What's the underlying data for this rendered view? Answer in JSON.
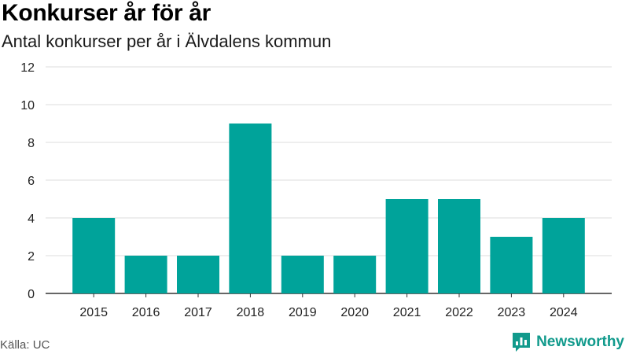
{
  "header": {
    "title": "Konkurser år för år",
    "subtitle": "Antal konkurser per år i Älvdalens kommun"
  },
  "footer": {
    "source": "Källa: UC",
    "brand": "Newsworthy"
  },
  "colors": {
    "bar": "#00a39a",
    "grid": "#dcdcdc",
    "axis": "#333333",
    "brand": "#119a8c"
  },
  "chart_data": {
    "type": "bar",
    "title": "Konkurser år för år",
    "subtitle": "Antal konkurser per år i Älvdalens kommun",
    "categories": [
      "2015",
      "2016",
      "2017",
      "2018",
      "2019",
      "2020",
      "2021",
      "2022",
      "2023",
      "2024"
    ],
    "values": [
      4,
      2,
      2,
      9,
      2,
      2,
      5,
      5,
      3,
      4
    ],
    "xlabel": "",
    "ylabel": "",
    "ylim": [
      0,
      12
    ],
    "yticks": [
      0,
      2,
      4,
      6,
      8,
      10,
      12
    ],
    "grid": true,
    "legend": "none"
  }
}
